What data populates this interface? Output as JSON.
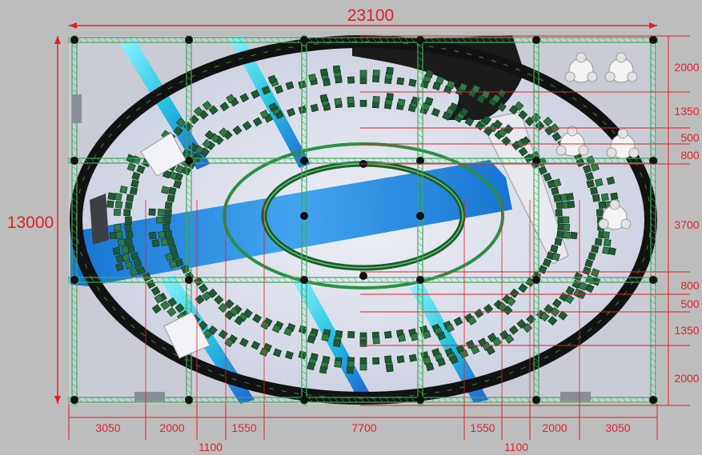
{
  "colors": {
    "dimension": "#e0202a",
    "floor": "#d9dde8",
    "ring": "#121212",
    "truss": "#3fa95c",
    "water": "#1e88e5",
    "tile": "#1f5a34",
    "background": "#bdbdbd"
  },
  "dimensions": {
    "overall_width": "23100",
    "overall_height": "13000",
    "right_column": [
      "2000",
      "1350",
      "500",
      "800",
      "3700",
      "800",
      "500",
      "1350",
      "2000"
    ],
    "bottom_row": [
      "3050",
      "2000",
      "1550",
      "7700",
      "1550",
      "2000",
      "3050"
    ],
    "bottom_sub": [
      "1100",
      "1100"
    ]
  },
  "icons": {
    "truss_node": "spotlight-icon",
    "furniture": "round-table-chairs-icon",
    "stage_figure": "figure-icon"
  }
}
